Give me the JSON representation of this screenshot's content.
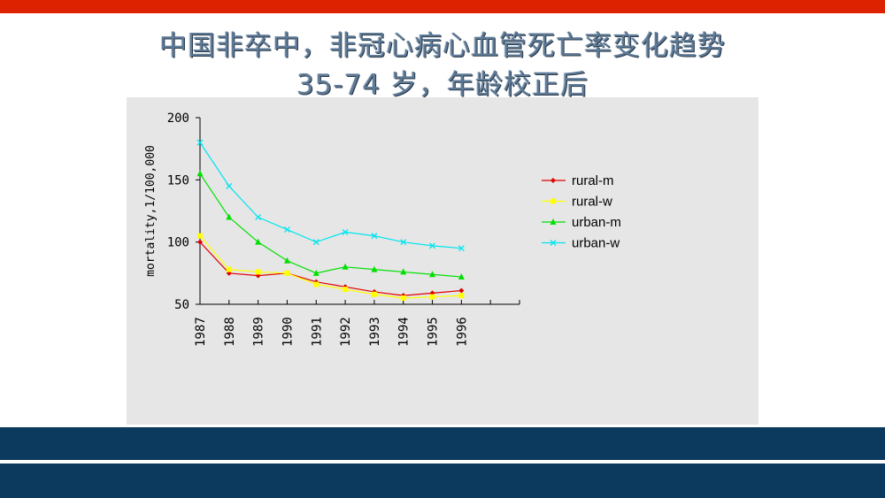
{
  "title_line1": "中国非卒中，非冠心病心血管死亡率变化趋势",
  "title_line2": "35-74 岁，年龄校正后",
  "colors": {
    "top_bar": "#dd2200",
    "bottom_band": "#0b3a5e",
    "plot_bg": "#e6e6e6"
  },
  "chart_data": {
    "type": "line",
    "title": "中国非卒中，非冠心病心血管死亡率变化趋势 35-74 岁，年龄校正后",
    "ylabel": "mortality,1/100,000",
    "xlabel": "",
    "ylim": [
      50,
      200
    ],
    "yticks": [
      50,
      100,
      150,
      200
    ],
    "xlim": [
      1987,
      1998
    ],
    "categories": [
      "1987",
      "1988",
      "1989",
      "1990",
      "1991",
      "1992",
      "1993",
      "1994",
      "1995",
      "1996"
    ],
    "grid": false,
    "legend_position": "right",
    "series": [
      {
        "name": "rural-m",
        "color": "#e00000",
        "marker": "diamond",
        "values": [
          100,
          75,
          73,
          75,
          68,
          64,
          60,
          57,
          59,
          61
        ]
      },
      {
        "name": "rural-w",
        "color": "#ffff00",
        "marker": "square",
        "values": [
          105,
          78,
          76,
          75,
          66,
          62,
          58,
          55,
          56,
          57
        ]
      },
      {
        "name": "urban-m",
        "color": "#00e000",
        "marker": "triangle",
        "values": [
          155,
          120,
          100,
          85,
          75,
          80,
          78,
          76,
          74,
          72
        ]
      },
      {
        "name": "urban-w",
        "color": "#00e5ee",
        "marker": "x",
        "values": [
          180,
          145,
          120,
          110,
          100,
          108,
          105,
          100,
          97,
          95
        ]
      }
    ]
  }
}
